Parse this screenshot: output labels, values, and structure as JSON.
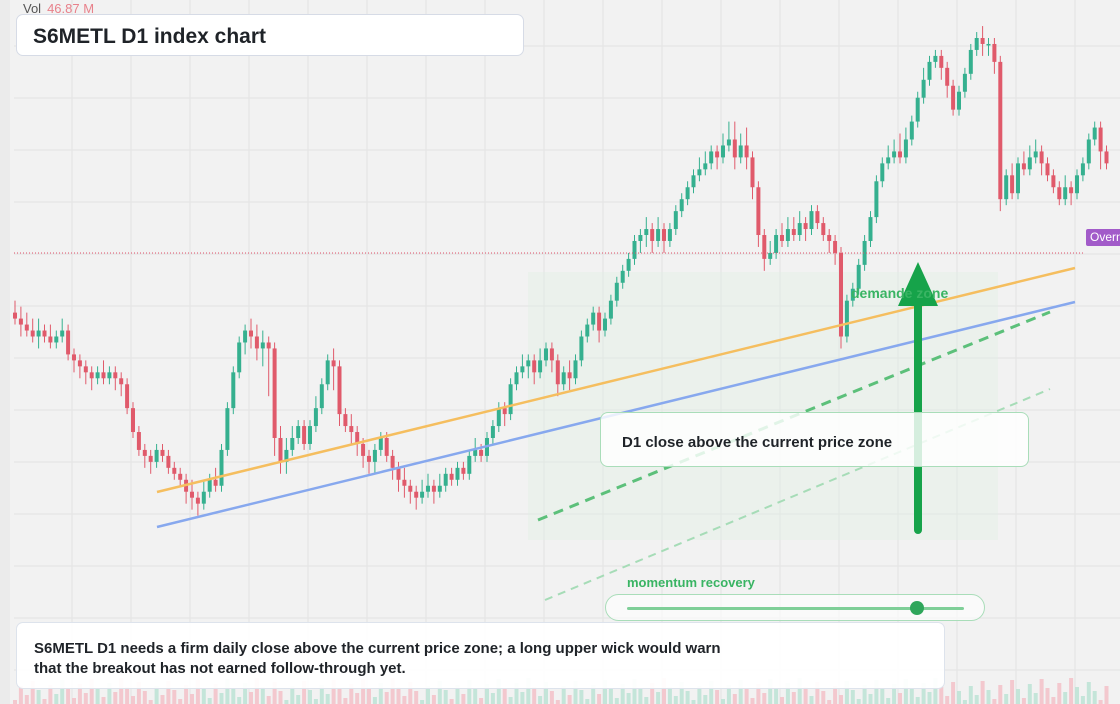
{
  "header": {
    "vol_label": "Vol",
    "vol_value": "46.87 M",
    "title": "S6METL D1 index chart"
  },
  "annotations": {
    "callout_text": "D1 close above the current price zone",
    "demand_label": "demande zone",
    "momentum_label": "momentum recovery",
    "momentum_level": 0.86,
    "price_badge": "Overn",
    "note": "S6METL D1 needs a firm daily close above the current price zone; a long upper wick would warn that the breakout has not earned follow-through yet."
  },
  "colors": {
    "background": "#f2f2f2",
    "up": "#35b08f",
    "down": "#e05a6b",
    "trend_orange": "#f5be5f",
    "trend_blue": "#87a8ee",
    "accent_green": "#16a34a",
    "badge": "#a25bc9"
  },
  "chart_data": {
    "type": "candlestick",
    "title": "S6METL D1 index chart",
    "timeframe": "D1",
    "y_range": [
      0,
      100
    ],
    "candles": [
      [
        54,
        53,
        56,
        52
      ],
      [
        53,
        52,
        55,
        50
      ],
      [
        52,
        51,
        54,
        50
      ],
      [
        51,
        50,
        53,
        49
      ],
      [
        50,
        51,
        53,
        48
      ],
      [
        51,
        50,
        52,
        49
      ],
      [
        50,
        49,
        52,
        48
      ],
      [
        49,
        50,
        51,
        48
      ],
      [
        50,
        51,
        53,
        49
      ],
      [
        51,
        47,
        52,
        46
      ],
      [
        47,
        46,
        48,
        44
      ],
      [
        46,
        45,
        47,
        43
      ],
      [
        45,
        44,
        46,
        42
      ],
      [
        44,
        43,
        45,
        41
      ],
      [
        43,
        44,
        45,
        42
      ],
      [
        44,
        43,
        46,
        42
      ],
      [
        43,
        44,
        45,
        42
      ],
      [
        44,
        43,
        45,
        41
      ],
      [
        43,
        42,
        44,
        40
      ],
      [
        42,
        38,
        43,
        37
      ],
      [
        38,
        34,
        39,
        33
      ],
      [
        34,
        31,
        35,
        30
      ],
      [
        31,
        30,
        32,
        28
      ],
      [
        30,
        29,
        31,
        27
      ],
      [
        29,
        31,
        32,
        28
      ],
      [
        31,
        30,
        32,
        29
      ],
      [
        30,
        28,
        31,
        27
      ],
      [
        28,
        27,
        29,
        26
      ],
      [
        27,
        26,
        28,
        25
      ],
      [
        26,
        24,
        27,
        22
      ],
      [
        24,
        23,
        26,
        21
      ],
      [
        23,
        22,
        24,
        20
      ],
      [
        22,
        24,
        26,
        21
      ],
      [
        24,
        26,
        27,
        23
      ],
      [
        26,
        25,
        28,
        24
      ],
      [
        25,
        31,
        32,
        24
      ],
      [
        31,
        38,
        39,
        30
      ],
      [
        38,
        44,
        45,
        37
      ],
      [
        44,
        49,
        50,
        43
      ],
      [
        49,
        51,
        52,
        47
      ],
      [
        51,
        50,
        53,
        48
      ],
      [
        50,
        48,
        52,
        46
      ],
      [
        48,
        49,
        51,
        45
      ],
      [
        49,
        48,
        50,
        40
      ],
      [
        48,
        33,
        49,
        30
      ],
      [
        33,
        29,
        35,
        27
      ],
      [
        29,
        31,
        33,
        27
      ],
      [
        31,
        33,
        35,
        30
      ],
      [
        33,
        35,
        36,
        32
      ],
      [
        35,
        32,
        36,
        31
      ],
      [
        32,
        35,
        36,
        31
      ],
      [
        35,
        38,
        40,
        34
      ],
      [
        38,
        42,
        43,
        37
      ],
      [
        42,
        46,
        47,
        41
      ],
      [
        46,
        45,
        48,
        41
      ],
      [
        45,
        37,
        46,
        35
      ],
      [
        37,
        35,
        38,
        34
      ],
      [
        35,
        34,
        37,
        32
      ],
      [
        34,
        32,
        35,
        30
      ],
      [
        32,
        30,
        33,
        28
      ],
      [
        30,
        29,
        31,
        27
      ],
      [
        29,
        31,
        32,
        27
      ],
      [
        31,
        33,
        34,
        30
      ],
      [
        33,
        30,
        34,
        29
      ],
      [
        30,
        28,
        31,
        26
      ],
      [
        28,
        26,
        29,
        24
      ],
      [
        26,
        25,
        28,
        23
      ],
      [
        25,
        24,
        26,
        22
      ],
      [
        24,
        23,
        25,
        21
      ],
      [
        23,
        24,
        26,
        22
      ],
      [
        24,
        25,
        27,
        23
      ],
      [
        25,
        24,
        26,
        22
      ],
      [
        24,
        25,
        27,
        23
      ],
      [
        25,
        27,
        28,
        24
      ],
      [
        27,
        26,
        28,
        25
      ],
      [
        26,
        28,
        29,
        25
      ],
      [
        28,
        27,
        29,
        26
      ],
      [
        27,
        30,
        31,
        26
      ],
      [
        30,
        31,
        33,
        29
      ],
      [
        31,
        30,
        32,
        29
      ],
      [
        30,
        33,
        34,
        29
      ],
      [
        33,
        35,
        36,
        32
      ],
      [
        35,
        38,
        39,
        34
      ],
      [
        38,
        37,
        39,
        35
      ],
      [
        37,
        42,
        43,
        36
      ],
      [
        42,
        44,
        45,
        41
      ],
      [
        44,
        45,
        47,
        43
      ],
      [
        45,
        46,
        47,
        43
      ],
      [
        46,
        44,
        47,
        42
      ],
      [
        44,
        46,
        48,
        43
      ],
      [
        46,
        48,
        49,
        45
      ],
      [
        48,
        46,
        49,
        44
      ],
      [
        46,
        42,
        47,
        40
      ],
      [
        42,
        44,
        45,
        41
      ],
      [
        44,
        43,
        46,
        41
      ],
      [
        43,
        46,
        47,
        42
      ],
      [
        46,
        50,
        51,
        45
      ],
      [
        50,
        52,
        53,
        49
      ],
      [
        52,
        54,
        55,
        51
      ],
      [
        54,
        51,
        55,
        49
      ],
      [
        51,
        53,
        54,
        50
      ],
      [
        53,
        56,
        57,
        52
      ],
      [
        56,
        59,
        60,
        55
      ],
      [
        59,
        61,
        62,
        58
      ],
      [
        61,
        63,
        64,
        60
      ],
      [
        63,
        66,
        67,
        62
      ],
      [
        66,
        67,
        68,
        64
      ],
      [
        67,
        68,
        70,
        65
      ],
      [
        68,
        66,
        69,
        64
      ],
      [
        66,
        68,
        70,
        65
      ],
      [
        68,
        66,
        69,
        64
      ],
      [
        66,
        68,
        69,
        65
      ],
      [
        68,
        71,
        72,
        67
      ],
      [
        71,
        73,
        74,
        70
      ],
      [
        73,
        75,
        76,
        72
      ],
      [
        75,
        77,
        78,
        74
      ],
      [
        77,
        78,
        80,
        76
      ],
      [
        78,
        79,
        81,
        77
      ],
      [
        79,
        81,
        82,
        78
      ],
      [
        81,
        80,
        82,
        78
      ],
      [
        80,
        82,
        84,
        79
      ],
      [
        82,
        83,
        86,
        81
      ],
      [
        83,
        80,
        86,
        78
      ],
      [
        80,
        82,
        84,
        79
      ],
      [
        82,
        80,
        85,
        78
      ],
      [
        80,
        75,
        81,
        73
      ],
      [
        75,
        67,
        76,
        65
      ],
      [
        67,
        63,
        68,
        61
      ],
      [
        63,
        64,
        66,
        62
      ],
      [
        64,
        67,
        68,
        63
      ],
      [
        67,
        66,
        69,
        65
      ],
      [
        66,
        68,
        70,
        65
      ],
      [
        68,
        67,
        70,
        66
      ],
      [
        67,
        69,
        71,
        66
      ],
      [
        69,
        68,
        70,
        66
      ],
      [
        68,
        71,
        72,
        67
      ],
      [
        71,
        69,
        72,
        68
      ],
      [
        69,
        67,
        70,
        66
      ],
      [
        67,
        66,
        68,
        64
      ],
      [
        66,
        64,
        67,
        62
      ],
      [
        64,
        50,
        65,
        48
      ],
      [
        50,
        56,
        57,
        49
      ],
      [
        56,
        58,
        59,
        55
      ],
      [
        58,
        62,
        63,
        57
      ],
      [
        62,
        66,
        67,
        61
      ],
      [
        66,
        70,
        71,
        65
      ],
      [
        70,
        76,
        77,
        69
      ],
      [
        76,
        79,
        80,
        75
      ],
      [
        79,
        80,
        82,
        78
      ],
      [
        80,
        81,
        83,
        79
      ],
      [
        81,
        80,
        84,
        79
      ],
      [
        80,
        83,
        85,
        79
      ],
      [
        83,
        86,
        87,
        82
      ],
      [
        86,
        90,
        91,
        85
      ],
      [
        90,
        93,
        95,
        89
      ],
      [
        93,
        96,
        97,
        92
      ],
      [
        96,
        97,
        98,
        95
      ],
      [
        97,
        95,
        98,
        93
      ],
      [
        95,
        92,
        96,
        90
      ],
      [
        92,
        88,
        93,
        87
      ],
      [
        88,
        91,
        92,
        87
      ],
      [
        91,
        94,
        95,
        90
      ],
      [
        94,
        98,
        99,
        93
      ],
      [
        98,
        100,
        101,
        97
      ],
      [
        100,
        99,
        102,
        97
      ],
      [
        99,
        99,
        100,
        97
      ],
      [
        99,
        96,
        100,
        94
      ],
      [
        96,
        73,
        97,
        71
      ],
      [
        73,
        77,
        78,
        72
      ],
      [
        77,
        74,
        79,
        73
      ],
      [
        74,
        79,
        80,
        73
      ],
      [
        79,
        78,
        81,
        77
      ],
      [
        78,
        80,
        82,
        77
      ],
      [
        80,
        81,
        83,
        79
      ],
      [
        81,
        79,
        82,
        77
      ],
      [
        79,
        77,
        80,
        76
      ],
      [
        77,
        75,
        78,
        74
      ],
      [
        75,
        73,
        76,
        72
      ],
      [
        73,
        75,
        77,
        72
      ],
      [
        75,
        74,
        76,
        72
      ],
      [
        74,
        77,
        78,
        73
      ],
      [
        77,
        79,
        80,
        76
      ],
      [
        79,
        83,
        84,
        78
      ],
      [
        83,
        85,
        86,
        82
      ],
      [
        85,
        81,
        86,
        78
      ],
      [
        81,
        79,
        82,
        78
      ]
    ]
  }
}
